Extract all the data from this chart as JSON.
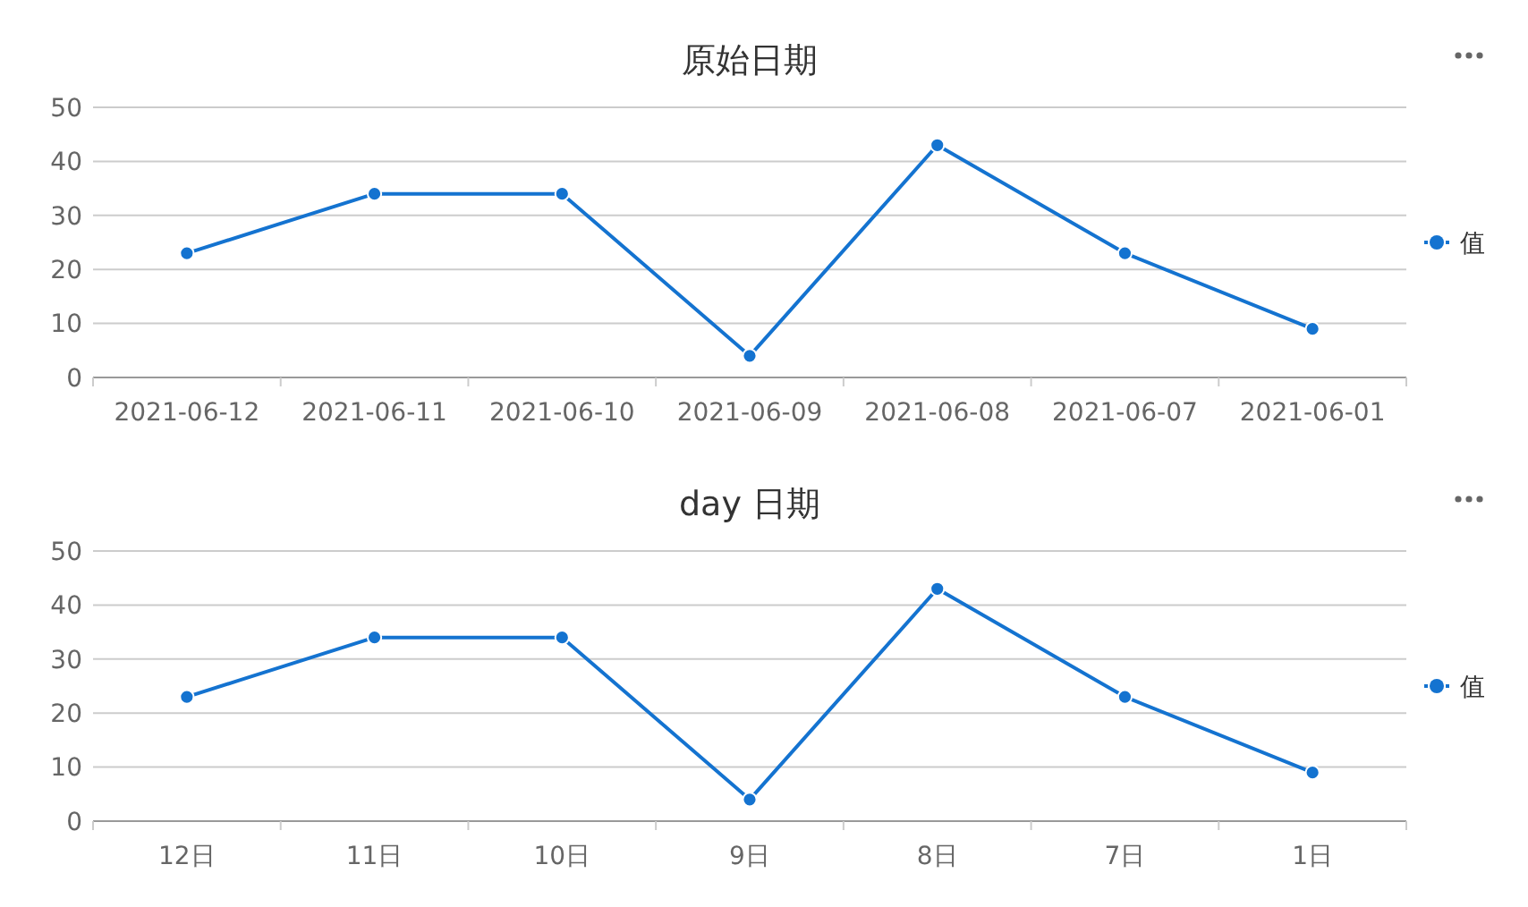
{
  "chart_data": [
    {
      "type": "line",
      "title": "原始日期",
      "categories": [
        "2021-06-12",
        "2021-06-11",
        "2021-06-10",
        "2021-06-09",
        "2021-06-08",
        "2021-06-07",
        "2021-06-01"
      ],
      "series": [
        {
          "name": "值",
          "color": "#1473d0",
          "values": [
            23,
            34,
            34,
            4,
            43,
            23,
            9
          ]
        }
      ],
      "ylim": [
        0,
        50
      ],
      "yticks": [
        0,
        10,
        20,
        30,
        40,
        50
      ],
      "grid": "y",
      "legend": "right",
      "marker": "circle",
      "line_style": "solid"
    },
    {
      "type": "line",
      "title": "day 日期",
      "categories": [
        "12日",
        "11日",
        "10日",
        "9日",
        "8日",
        "7日",
        "1日"
      ],
      "series": [
        {
          "name": "值",
          "color": "#1473d0",
          "values": [
            23,
            34,
            34,
            4,
            43,
            23,
            9
          ]
        }
      ],
      "ylim": [
        0,
        50
      ],
      "yticks": [
        0,
        10,
        20,
        30,
        40,
        50
      ],
      "grid": "y",
      "legend": "right",
      "marker": "circle",
      "line_style": "solid"
    }
  ]
}
